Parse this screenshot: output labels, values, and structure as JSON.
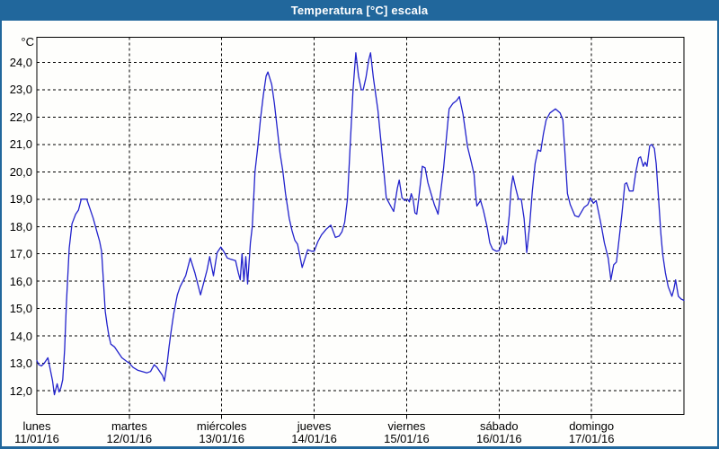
{
  "window": {
    "title": "Temperatura [°C] escala"
  },
  "colors": {
    "chrome_blue": "#21679C",
    "background": "#FEFEFC",
    "line_blue": "#2222CC",
    "grid_black": "#000000",
    "text_black": "#000000"
  },
  "chart_data": {
    "type": "line",
    "title": "Temperatura [°C] escala",
    "ylabel": "°C",
    "grid": "dashed",
    "legend": "none",
    "ylim": [
      11.1,
      24.9
    ],
    "x_axis_days": 7,
    "y_ticks": [
      {
        "value": 24,
        "label": "24,0"
      },
      {
        "value": 23,
        "label": "23,0"
      },
      {
        "value": 22,
        "label": "22,0"
      },
      {
        "value": 21,
        "label": "21,0"
      },
      {
        "value": 20,
        "label": "20,0"
      },
      {
        "value": 19,
        "label": "19,0"
      },
      {
        "value": 18,
        "label": "18,0"
      },
      {
        "value": 17,
        "label": "17,0"
      },
      {
        "value": 16,
        "label": "16,0"
      },
      {
        "value": 15,
        "label": "15,0"
      },
      {
        "value": 14,
        "label": "14,0"
      },
      {
        "value": 13,
        "label": "13,0"
      },
      {
        "value": 12,
        "label": "12,0"
      }
    ],
    "x_days": [
      {
        "name": "lunes",
        "date": "11/01/16"
      },
      {
        "name": "martes",
        "date": "12/01/16"
      },
      {
        "name": "miércoles",
        "date": "13/01/16"
      },
      {
        "name": "jueves",
        "date": "14/01/16"
      },
      {
        "name": "viernes",
        "date": "15/01/16"
      },
      {
        "name": "sábado",
        "date": "16/01/16"
      },
      {
        "name": "domingo",
        "date": "17/01/16"
      }
    ],
    "series": [
      {
        "name": "Temperatura [°C]",
        "units": "x = days since lunes 11/01/16 00:00, y = °C",
        "points": [
          [
            0.0,
            13.1
          ],
          [
            0.02,
            12.95
          ],
          [
            0.05,
            12.9
          ],
          [
            0.08,
            13.0
          ],
          [
            0.12,
            13.2
          ],
          [
            0.15,
            12.7
          ],
          [
            0.17,
            12.35
          ],
          [
            0.19,
            11.85
          ],
          [
            0.22,
            12.25
          ],
          [
            0.24,
            11.95
          ],
          [
            0.26,
            12.1
          ],
          [
            0.28,
            12.4
          ],
          [
            0.3,
            13.5
          ],
          [
            0.32,
            15.2
          ],
          [
            0.35,
            17.2
          ],
          [
            0.38,
            18.1
          ],
          [
            0.42,
            18.45
          ],
          [
            0.45,
            18.6
          ],
          [
            0.48,
            19.0
          ],
          [
            0.54,
            19.0
          ],
          [
            0.57,
            18.7
          ],
          [
            0.61,
            18.3
          ],
          [
            0.65,
            17.8
          ],
          [
            0.68,
            17.45
          ],
          [
            0.7,
            17.1
          ],
          [
            0.72,
            16.0
          ],
          [
            0.74,
            14.9
          ],
          [
            0.76,
            14.4
          ],
          [
            0.78,
            14.0
          ],
          [
            0.8,
            13.7
          ],
          [
            0.84,
            13.6
          ],
          [
            0.88,
            13.4
          ],
          [
            0.92,
            13.2
          ],
          [
            0.96,
            13.1
          ],
          [
            1.0,
            13.0
          ],
          [
            1.04,
            12.85
          ],
          [
            1.09,
            12.75
          ],
          [
            1.14,
            12.7
          ],
          [
            1.19,
            12.65
          ],
          [
            1.23,
            12.7
          ],
          [
            1.27,
            12.95
          ],
          [
            1.3,
            12.85
          ],
          [
            1.33,
            12.7
          ],
          [
            1.36,
            12.55
          ],
          [
            1.38,
            12.35
          ],
          [
            1.41,
            13.0
          ],
          [
            1.43,
            13.6
          ],
          [
            1.45,
            14.1
          ],
          [
            1.48,
            14.8
          ],
          [
            1.52,
            15.5
          ],
          [
            1.55,
            15.8
          ],
          [
            1.61,
            16.2
          ],
          [
            1.66,
            16.85
          ],
          [
            1.71,
            16.3
          ],
          [
            1.77,
            15.5
          ],
          [
            1.84,
            16.4
          ],
          [
            1.87,
            16.9
          ],
          [
            1.91,
            16.2
          ],
          [
            1.95,
            17.05
          ],
          [
            1.99,
            17.25
          ],
          [
            2.02,
            17.1
          ],
          [
            2.06,
            16.85
          ],
          [
            2.1,
            16.8
          ],
          [
            2.15,
            16.75
          ],
          [
            2.18,
            16.3
          ],
          [
            2.2,
            16.05
          ],
          [
            2.22,
            17.0
          ],
          [
            2.24,
            16.0
          ],
          [
            2.26,
            16.9
          ],
          [
            2.28,
            15.9
          ],
          [
            2.31,
            17.4
          ],
          [
            2.33,
            18.0
          ],
          [
            2.36,
            20.0
          ],
          [
            2.39,
            20.9
          ],
          [
            2.42,
            21.95
          ],
          [
            2.45,
            22.8
          ],
          [
            2.48,
            23.5
          ],
          [
            2.5,
            23.65
          ],
          [
            2.54,
            23.2
          ],
          [
            2.57,
            22.5
          ],
          [
            2.6,
            21.6
          ],
          [
            2.63,
            20.7
          ],
          [
            2.66,
            20.05
          ],
          [
            2.69,
            19.2
          ],
          [
            2.73,
            18.3
          ],
          [
            2.76,
            17.85
          ],
          [
            2.79,
            17.5
          ],
          [
            2.82,
            17.35
          ],
          [
            2.87,
            16.5
          ],
          [
            2.93,
            17.15
          ],
          [
            2.97,
            17.1
          ],
          [
            3.0,
            17.1
          ],
          [
            3.04,
            17.45
          ],
          [
            3.08,
            17.7
          ],
          [
            3.13,
            17.9
          ],
          [
            3.18,
            18.05
          ],
          [
            3.23,
            17.6
          ],
          [
            3.27,
            17.65
          ],
          [
            3.3,
            17.8
          ],
          [
            3.33,
            18.15
          ],
          [
            3.36,
            19.0
          ],
          [
            3.39,
            21.0
          ],
          [
            3.42,
            23.0
          ],
          [
            3.45,
            24.35
          ],
          [
            3.48,
            23.5
          ],
          [
            3.51,
            23.0
          ],
          [
            3.53,
            23.0
          ],
          [
            3.56,
            23.45
          ],
          [
            3.59,
            24.1
          ],
          [
            3.61,
            24.35
          ],
          [
            3.64,
            23.45
          ],
          [
            3.66,
            22.95
          ],
          [
            3.69,
            22.25
          ],
          [
            3.72,
            21.2
          ],
          [
            3.75,
            20.15
          ],
          [
            3.78,
            19.05
          ],
          [
            3.82,
            18.8
          ],
          [
            3.86,
            18.55
          ],
          [
            3.9,
            19.4
          ],
          [
            3.92,
            19.7
          ],
          [
            3.95,
            19.05
          ],
          [
            3.98,
            18.95
          ],
          [
            4.01,
            19.0
          ],
          [
            4.03,
            18.9
          ],
          [
            4.05,
            19.2
          ],
          [
            4.07,
            19.0
          ],
          [
            4.09,
            18.5
          ],
          [
            4.11,
            18.45
          ],
          [
            4.13,
            19.0
          ],
          [
            4.15,
            19.6
          ],
          [
            4.17,
            20.2
          ],
          [
            4.2,
            20.15
          ],
          [
            4.23,
            19.6
          ],
          [
            4.26,
            19.25
          ],
          [
            4.3,
            18.8
          ],
          [
            4.34,
            18.45
          ],
          [
            4.37,
            19.3
          ],
          [
            4.4,
            20.15
          ],
          [
            4.43,
            21.25
          ],
          [
            4.46,
            22.3
          ],
          [
            4.5,
            22.5
          ],
          [
            4.54,
            22.6
          ],
          [
            4.57,
            22.75
          ],
          [
            4.61,
            22.1
          ],
          [
            4.66,
            20.9
          ],
          [
            4.7,
            20.35
          ],
          [
            4.73,
            19.9
          ],
          [
            4.745,
            19.2
          ],
          [
            4.76,
            18.75
          ],
          [
            4.8,
            18.95
          ],
          [
            4.83,
            18.6
          ],
          [
            4.87,
            18.0
          ],
          [
            4.9,
            17.4
          ],
          [
            4.93,
            17.17
          ],
          [
            4.97,
            17.1
          ],
          [
            5.0,
            17.12
          ],
          [
            5.02,
            17.3
          ],
          [
            5.04,
            17.65
          ],
          [
            5.06,
            17.35
          ],
          [
            5.08,
            17.4
          ],
          [
            5.11,
            18.4
          ],
          [
            5.13,
            19.4
          ],
          [
            5.15,
            19.85
          ],
          [
            5.18,
            19.4
          ],
          [
            5.21,
            19.0
          ],
          [
            5.24,
            19.0
          ],
          [
            5.27,
            18.3
          ],
          [
            5.3,
            17.05
          ],
          [
            5.33,
            18.0
          ],
          [
            5.36,
            19.3
          ],
          [
            5.39,
            20.3
          ],
          [
            5.42,
            20.8
          ],
          [
            5.45,
            20.75
          ],
          [
            5.48,
            21.4
          ],
          [
            5.51,
            21.9
          ],
          [
            5.55,
            22.15
          ],
          [
            5.61,
            22.3
          ],
          [
            5.66,
            22.15
          ],
          [
            5.69,
            21.9
          ],
          [
            5.72,
            20.3
          ],
          [
            5.74,
            19.2
          ],
          [
            5.77,
            18.8
          ],
          [
            5.82,
            18.4
          ],
          [
            5.86,
            18.35
          ],
          [
            5.92,
            18.7
          ],
          [
            5.96,
            18.8
          ],
          [
            5.99,
            19.05
          ],
          [
            6.02,
            18.85
          ],
          [
            6.05,
            18.95
          ],
          [
            6.09,
            18.3
          ],
          [
            6.11,
            17.95
          ],
          [
            6.14,
            17.4
          ],
          [
            6.18,
            16.85
          ],
          [
            6.21,
            16.05
          ],
          [
            6.24,
            16.6
          ],
          [
            6.27,
            16.7
          ],
          [
            6.29,
            17.3
          ],
          [
            6.33,
            18.5
          ],
          [
            6.36,
            19.55
          ],
          [
            6.38,
            19.6
          ],
          [
            6.41,
            19.3
          ],
          [
            6.45,
            19.3
          ],
          [
            6.48,
            20.0
          ],
          [
            6.51,
            20.5
          ],
          [
            6.53,
            20.55
          ],
          [
            6.56,
            20.2
          ],
          [
            6.58,
            20.35
          ],
          [
            6.6,
            20.2
          ],
          [
            6.63,
            20.95
          ],
          [
            6.65,
            21.0
          ],
          [
            6.68,
            20.85
          ],
          [
            6.7,
            20.3
          ],
          [
            6.72,
            19.3
          ],
          [
            6.75,
            17.75
          ],
          [
            6.77,
            17.0
          ],
          [
            6.8,
            16.3
          ],
          [
            6.83,
            15.8
          ],
          [
            6.87,
            15.45
          ],
          [
            6.89,
            15.7
          ],
          [
            6.91,
            16.05
          ],
          [
            6.94,
            15.45
          ],
          [
            6.97,
            15.35
          ],
          [
            7.0,
            15.3
          ]
        ]
      }
    ]
  }
}
